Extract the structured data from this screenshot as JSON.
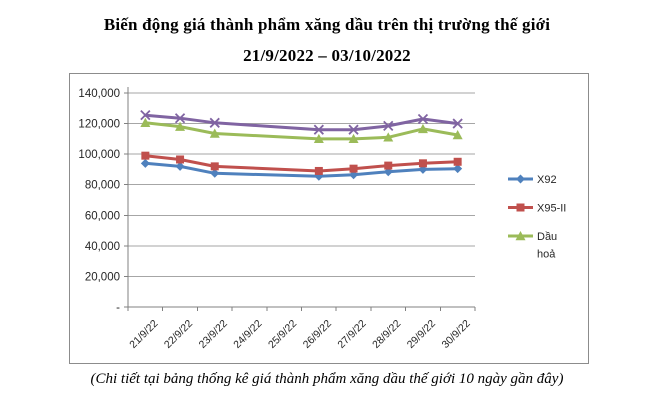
{
  "title": {
    "line1": "Biến động giá thành phẩm xăng dầu trên thị trường thế giới",
    "line2": "21/9/2022 – 03/10/2022"
  },
  "footer": {
    "note": "(Chi tiết tại bảng thống kê giá thành phẩm xăng dầu thế giới 10 ngày gần đây)"
  },
  "chart_data": {
    "type": "line",
    "title": "Biến động giá thành phẩm xăng dầu trên thị trường thế giới 21/9/2022 – 03/10/2022",
    "categories": [
      "21/9/22",
      "22/9/22",
      "23/9/22",
      "24/9/22",
      "25/9/22",
      "26/9/22",
      "27/9/22",
      "28/9/22",
      "29/9/22",
      "30/9/22"
    ],
    "series": [
      {
        "name": "X92",
        "color": "#4F81BD",
        "marker": "diamond",
        "values": [
          94000,
          92000,
          87500,
          null,
          null,
          85500,
          86500,
          88500,
          90000,
          90500
        ]
      },
      {
        "name": "X95-II",
        "color": "#C0504D",
        "marker": "square",
        "values": [
          99000,
          96500,
          92000,
          null,
          null,
          89000,
          90500,
          92500,
          94000,
          95000
        ]
      },
      {
        "name": "Dầu hoả",
        "color": "#9BBB59",
        "marker": "triangle",
        "values": [
          120500,
          118000,
          113500,
          null,
          null,
          110000,
          110000,
          111000,
          116500,
          112500
        ]
      },
      {
        "name": "",
        "color": "#8064A2",
        "marker": "x",
        "values": [
          125500,
          123500,
          120500,
          null,
          null,
          116000,
          116000,
          118500,
          123000,
          120000
        ]
      }
    ],
    "y_axis": {
      "min": 0,
      "max": 140000,
      "step": 20000,
      "ticks": [
        {
          "value": 140000,
          "label": "140,000"
        },
        {
          "value": 120000,
          "label": "120,000"
        },
        {
          "value": 100000,
          "label": "100,000"
        },
        {
          "value": 80000,
          "label": "80,000"
        },
        {
          "value": 60000,
          "label": "60,000"
        },
        {
          "value": 40000,
          "label": "40,000"
        },
        {
          "value": 20000,
          "label": "20,000"
        },
        {
          "value": 0,
          "label": "-"
        }
      ]
    },
    "x_axis": {
      "label_rotation_deg": -45
    },
    "legend": {
      "position": "right",
      "entries": [
        {
          "label": "X92",
          "lines": [
            "X92"
          ]
        },
        {
          "label": "X95-II",
          "lines": [
            "X95-II"
          ]
        },
        {
          "label": "Dầu hoả",
          "lines": [
            "Dầu",
            "hoả"
          ]
        }
      ]
    },
    "grid": true,
    "colors": {
      "gridline": "#A6A6A6",
      "axis": "#808080",
      "tick_text": "#262626",
      "frame_border": "#8C8C8C",
      "background": "#FFFFFF"
    }
  }
}
